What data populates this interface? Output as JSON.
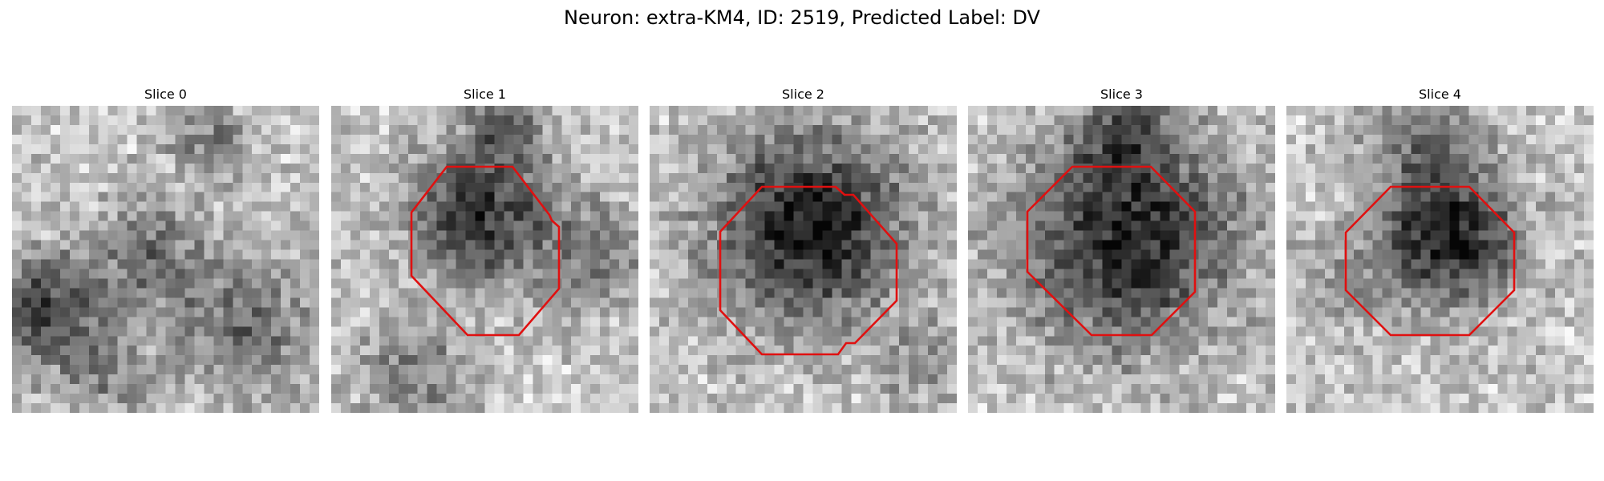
{
  "figure": {
    "title": "Neuron: extra-KM4, ID: 2519, Predicted Label: DV",
    "contour_color": "#e01010",
    "panels": [
      {
        "title": "Slice 0",
        "has_contour": false
      },
      {
        "title": "Slice 1",
        "has_contour": true
      },
      {
        "title": "Slice 2",
        "has_contour": true
      },
      {
        "title": "Slice 3",
        "has_contour": true
      },
      {
        "title": "Slice 4",
        "has_contour": true
      }
    ]
  }
}
